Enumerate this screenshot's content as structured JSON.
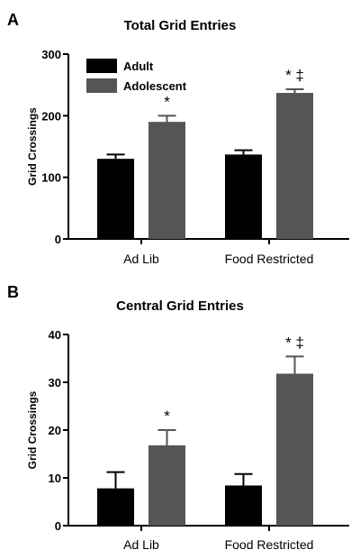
{
  "chart_data": [
    {
      "type": "bar",
      "panel_label": "A",
      "title": "Total Grid Entries",
      "ylabel": "Grid Crossings",
      "xlabel": "",
      "ylim": [
        0,
        300
      ],
      "yticks": [
        0,
        100,
        200,
        300
      ],
      "categories": [
        "Ad Lib",
        "Food Restricted"
      ],
      "series": [
        {
          "name": "Adult",
          "color": "#000000",
          "values": [
            130,
            137
          ],
          "errors": [
            7,
            7
          ]
        },
        {
          "name": "Adolescent",
          "color": "#555555",
          "values": [
            190,
            237
          ],
          "errors": [
            10,
            6
          ]
        }
      ],
      "annotations": [
        {
          "series": 1,
          "category": 0,
          "text": "*"
        },
        {
          "series": 1,
          "category": 1,
          "text": "* ‡"
        }
      ],
      "legend": {
        "placement": "top-left",
        "entries": [
          "Adult",
          "Adolescent"
        ]
      },
      "grid": false
    },
    {
      "type": "bar",
      "panel_label": "B",
      "title": "Central Grid Entries",
      "ylabel": "Grid Crossings",
      "xlabel": "",
      "ylim": [
        0,
        40
      ],
      "yticks": [
        0,
        10,
        20,
        30,
        40
      ],
      "categories": [
        "Ad Lib",
        "Food Restricted"
      ],
      "series": [
        {
          "name": "Adult",
          "color": "#000000",
          "values": [
            7.8,
            8.4
          ],
          "errors": [
            3.4,
            2.4
          ]
        },
        {
          "name": "Adolescent",
          "color": "#555555",
          "values": [
            16.8,
            31.8
          ],
          "errors": [
            3.2,
            3.6
          ]
        }
      ],
      "annotations": [
        {
          "series": 1,
          "category": 0,
          "text": "*"
        },
        {
          "series": 1,
          "category": 1,
          "text": "* ‡"
        }
      ],
      "legend": null,
      "grid": false
    }
  ]
}
